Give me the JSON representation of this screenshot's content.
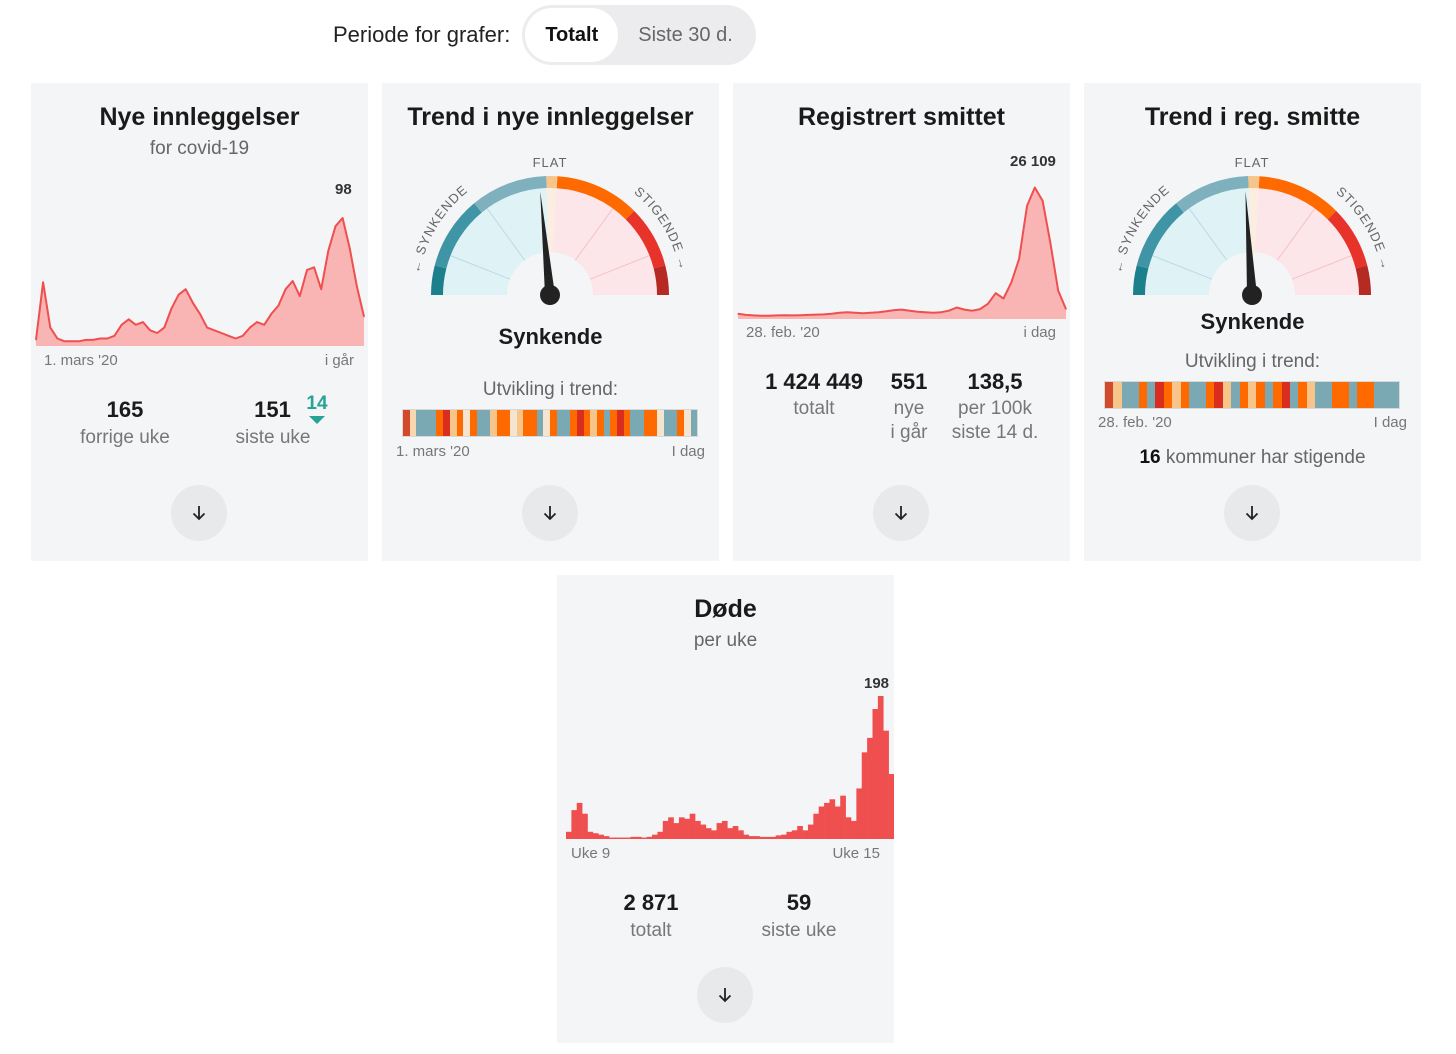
{
  "period": {
    "label": "Periode for grafer:",
    "options": [
      "Totalt",
      "Siste 30 d."
    ],
    "selected": "Totalt"
  },
  "colors": {
    "red": "#ef4f4f",
    "pink_fill": "#f9b4b4",
    "card_bg": "#f4f5f6",
    "teal": "#27a297"
  },
  "cards": {
    "admissions": {
      "title": "Nye innleggelser",
      "subtitle": "for covid-19",
      "peak_label": "98",
      "axis_start": "1. mars '20",
      "axis_end": "i går",
      "stat1_value": "165",
      "stat1_label": "forrige uke",
      "stat2_value": "151",
      "stat2_label": "siste uke",
      "change_value": "14",
      "change_direction": "down"
    },
    "admissions_trend": {
      "title": "Trend i nye innleggelser",
      "gauge_labels": {
        "left": "← SYNKENDE",
        "top": "FLAT",
        "right": "STIGENDE →"
      },
      "status": "Synkende",
      "trend_title": "Utvikling i trend:",
      "axis_start": "1. mars '20",
      "axis_end": "I dag"
    },
    "infected": {
      "title": "Registrert smittet",
      "peak_label": "26 109",
      "axis_start": "28. feb. '20",
      "axis_end": "i dag",
      "stat1_value": "1 424 449",
      "stat1_label": "totalt",
      "stat2_value": "551",
      "stat2_label_1": "nye",
      "stat2_label_2": "i går",
      "stat3_value": "138,5",
      "stat3_label_1": "per 100k",
      "stat3_label_2": "siste 14 d."
    },
    "infected_trend": {
      "title": "Trend i reg. smitte",
      "gauge_labels": {
        "left": "← SYNKENDE",
        "top": "FLAT",
        "right": "STIGENDE →"
      },
      "status": "Synkende",
      "trend_title": "Utvikling i trend:",
      "axis_start": "28. feb. '20",
      "axis_end": "I dag",
      "municipalities_count": "16",
      "municipalities_text": "kommuner har stigende"
    },
    "deaths": {
      "title": "Døde",
      "subtitle": "per uke",
      "peak_label": "198",
      "axis_start": "Uke 9",
      "axis_end": "Uke 15",
      "stat1_value": "2 871",
      "stat1_label": "totalt",
      "stat2_value": "59",
      "stat2_label": "siste uke"
    }
  },
  "chart_data": [
    {
      "type": "area",
      "title": "Nye innleggelser",
      "xlabel_start": "1. mars '20",
      "xlabel_end": "i går",
      "ylim": [
        0,
        100
      ],
      "peak": 98,
      "values": [
        3,
        45,
        12,
        4,
        2,
        2,
        2,
        3,
        3,
        4,
        4,
        6,
        14,
        18,
        14,
        16,
        10,
        8,
        12,
        26,
        36,
        40,
        30,
        22,
        12,
        10,
        8,
        6,
        4,
        6,
        12,
        16,
        14,
        22,
        28,
        40,
        46,
        35,
        54,
        56,
        40,
        68,
        86,
        92,
        70,
        42,
        20
      ]
    },
    {
      "type": "area",
      "title": "Registrert smittet",
      "xlabel_start": "28. feb. '20",
      "xlabel_end": "i dag",
      "ylim": [
        0,
        26109
      ],
      "peak": 26109,
      "values": [
        600,
        400,
        300,
        250,
        250,
        300,
        350,
        300,
        350,
        400,
        450,
        500,
        600,
        800,
        900,
        800,
        700,
        800,
        900,
        1100,
        1300,
        1400,
        1200,
        1000,
        900,
        800,
        900,
        1200,
        1800,
        1400,
        1200,
        1500,
        2500,
        4500,
        3500,
        6500,
        11000,
        21000,
        24500,
        22000,
        14000,
        5000,
        1500
      ]
    },
    {
      "type": "bar",
      "title": "Døde per uke",
      "xlabel_start": "Uke 9",
      "xlabel_end": "Uke 15",
      "ylim": [
        0,
        198
      ],
      "peak": 198,
      "values": [
        10,
        40,
        50,
        35,
        10,
        8,
        6,
        4,
        2,
        2,
        2,
        2,
        3,
        3,
        2,
        3,
        6,
        10,
        25,
        30,
        22,
        30,
        28,
        35,
        25,
        20,
        15,
        12,
        22,
        25,
        15,
        18,
        12,
        6,
        4,
        4,
        3,
        3,
        3,
        5,
        6,
        10,
        12,
        18,
        12,
        20,
        35,
        45,
        50,
        55,
        45,
        60,
        30,
        25,
        70,
        120,
        140,
        180,
        198,
        150,
        90
      ]
    }
  ],
  "gauges": [
    {
      "card": "admissions_trend",
      "needle_fraction": 0.47
    },
    {
      "card": "infected_trend",
      "needle_fraction": 0.48
    }
  ],
  "strips": {
    "admissions_trend": [
      "#d3492b",
      "#f6d7b0",
      "#7aa8b3",
      "#7aa8b3",
      "#7aa8b3",
      "#ff6a00",
      "#d92e1f",
      "#f7c48a",
      "#ff6a00",
      "#f5e4d0",
      "#ff6a00",
      "#7aa8b3",
      "#7aa8b3",
      "#f7c48a",
      "#ff6a00",
      "#ff6a00",
      "#f5e4d0",
      "#f7c48a",
      "#ff6a00",
      "#ff6a00",
      "#7aa8b3",
      "#f5e4d0",
      "#ff6a00",
      "#7aa8b3",
      "#7aa8b3",
      "#ff6a00",
      "#d92e1f",
      "#ff6a00",
      "#f7c48a",
      "#ff6a00",
      "#7aa8b3",
      "#ff6a00",
      "#d92e1f",
      "#ff6a00",
      "#7aa8b3",
      "#7aa8b3",
      "#ff6a00",
      "#ff6a00",
      "#f5e4d0",
      "#7aa8b3",
      "#7aa8b3",
      "#ff6a00",
      "#f5e4d0",
      "#7aa8b3"
    ],
    "infected_trend": [
      "#d3492b",
      "#f7c48a",
      "#7aa8b3",
      "#7aa8b3",
      "#ff6a00",
      "#7aa8b3",
      "#d92e1f",
      "#ff6a00",
      "#f7c48a",
      "#ff6a00",
      "#7aa8b3",
      "#7aa8b3",
      "#ff6a00",
      "#d92e1f",
      "#f7c48a",
      "#7aa8b3",
      "#ff6a00",
      "#f7c48a",
      "#ff6a00",
      "#7aa8b3",
      "#ff6a00",
      "#d92e1f",
      "#7aa8b3",
      "#ff6a00",
      "#f7c48a",
      "#7aa8b3",
      "#7aa8b3",
      "#ff6a00",
      "#ff6a00",
      "#7aa8b3",
      "#ff6a00",
      "#ff6a00",
      "#7aa8b3",
      "#7aa8b3",
      "#7aa8b3"
    ]
  }
}
